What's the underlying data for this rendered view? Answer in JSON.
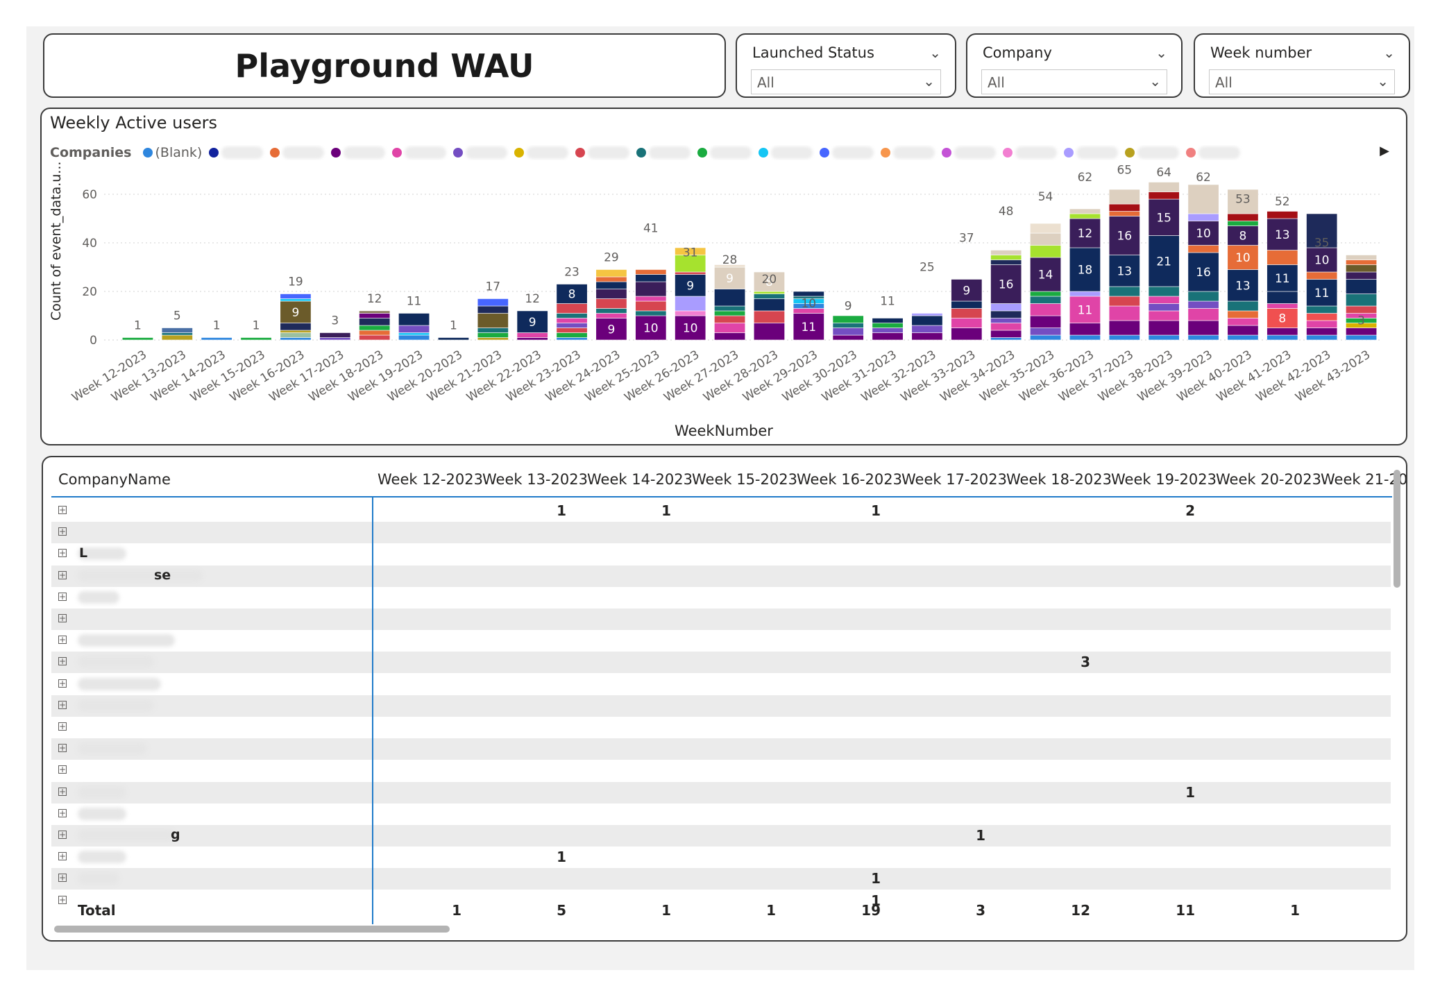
{
  "header": {
    "title": "Playground WAU"
  },
  "slicers": [
    {
      "label": "Launched Status",
      "value": "All"
    },
    {
      "label": "Company",
      "value": "All"
    },
    {
      "label": "Week number",
      "value": "All"
    }
  ],
  "chart": {
    "title": "Weekly Active users",
    "legend_title": "Companies",
    "legend_items": [
      {
        "label": "(Blank)",
        "color": "#2e86de"
      },
      {
        "label": "",
        "color": "#12239e"
      },
      {
        "label": "",
        "color": "#e66c37"
      },
      {
        "label": "",
        "color": "#6b007b"
      },
      {
        "label": "",
        "color": "#e044a7"
      },
      {
        "label": "",
        "color": "#744ec2"
      },
      {
        "label": "",
        "color": "#d9b300"
      },
      {
        "label": "",
        "color": "#d64550"
      },
      {
        "label": "",
        "color": "#197278"
      },
      {
        "label": "",
        "color": "#1aab40"
      },
      {
        "label": "",
        "color": "#15c6f4"
      },
      {
        "label": "",
        "color": "#4766ff"
      },
      {
        "label": "",
        "color": "#f7964d"
      },
      {
        "label": "",
        "color": "#c453d6"
      },
      {
        "label": "",
        "color": "#f27fd1"
      },
      {
        "label": "",
        "color": "#a99cff"
      },
      {
        "label": "",
        "color": "#b8a11f"
      },
      {
        "label": "",
        "color": "#f08080"
      }
    ],
    "legend_arrow": "▶"
  },
  "chart_data": {
    "type": "bar",
    "stacked": true,
    "xlabel": "WeekNumber",
    "ylabel": "Count of event_data.u...",
    "ylim": [
      0,
      70
    ],
    "yticks": [
      0,
      20,
      40,
      60
    ],
    "grid": true,
    "categories": [
      "Week 12-2023",
      "Week 13-2023",
      "Week 14-2023",
      "Week 15-2023",
      "Week 16-2023",
      "Week 17-2023",
      "Week 18-2023",
      "Week 19-2023",
      "Week 20-2023",
      "Week 21-2023",
      "Week 22-2023",
      "Week 23-2023",
      "Week 24-2023",
      "Week 25-2023",
      "Week 26-2023",
      "Week 27-2023",
      "Week 28-2023",
      "Week 29-2023",
      "Week 30-2023",
      "Week 31-2023",
      "Week 32-2023",
      "Week 33-2023",
      "Week 34-2023",
      "Week 35-2023",
      "Week 36-2023",
      "Week 37-2023",
      "Week 38-2023",
      "Week 39-2023",
      "Week 40-2023",
      "Week 41-2023",
      "Week 42-2023",
      "Week 43-2023"
    ],
    "totals": [
      1,
      5,
      1,
      1,
      19,
      3,
      12,
      11,
      1,
      17,
      12,
      23,
      29,
      41,
      31,
      28,
      20,
      10,
      9,
      11,
      25,
      37,
      48,
      54,
      62,
      65,
      64,
      62,
      53,
      52,
      35,
      3
    ],
    "segments": [
      [
        {
          "v": 1,
          "c": "#1aab40"
        }
      ],
      [
        {
          "v": 2,
          "c": "#b8a11f"
        },
        {
          "v": 1,
          "c": "#197278"
        },
        {
          "v": 2,
          "c": "#4a6fa5"
        }
      ],
      [
        {
          "v": 1,
          "c": "#2e86de"
        }
      ],
      [
        {
          "v": 1,
          "c": "#1aab40"
        }
      ],
      [
        {
          "v": 1,
          "c": "#2e86de"
        },
        {
          "v": 2,
          "c": "#9bc0a0"
        },
        {
          "v": 1,
          "c": "#b8a11f"
        },
        {
          "v": 3,
          "c": "#1e2a5a"
        },
        {
          "v": 9,
          "c": "#6b5b2a",
          "label": "9"
        },
        {
          "v": 1,
          "c": "#15c6f4"
        },
        {
          "v": 2,
          "c": "#4766ff"
        }
      ],
      [
        {
          "v": 1,
          "c": "#744ec2"
        },
        {
          "v": 2,
          "c": "#3a1e5a"
        }
      ],
      [
        {
          "v": 2,
          "c": "#d64550"
        },
        {
          "v": 2,
          "c": "#e66c37"
        },
        {
          "v": 2,
          "c": "#1aab40"
        },
        {
          "v": 3,
          "c": "#1e2a5a"
        },
        {
          "v": 2,
          "c": "#6b007b"
        },
        {
          "v": 1,
          "c": "#8a7a5a"
        }
      ],
      [
        {
          "v": 2,
          "c": "#2e86de"
        },
        {
          "v": 1,
          "c": "#15c6f4"
        },
        {
          "v": 3,
          "c": "#744ec2"
        },
        {
          "v": 5,
          "c": "#0f2a5c"
        }
      ],
      [
        {
          "v": 1,
          "c": "#0f2a5c"
        }
      ],
      [
        {
          "v": 1,
          "c": "#b8a11f"
        },
        {
          "v": 2,
          "c": "#1aab40"
        },
        {
          "v": 2,
          "c": "#197278"
        },
        {
          "v": 6,
          "c": "#6b5b2a"
        },
        {
          "v": 3,
          "c": "#1e2a5a"
        },
        {
          "v": 3,
          "c": "#4766ff"
        }
      ],
      [
        {
          "v": 1,
          "c": "#6b007b"
        },
        {
          "v": 2,
          "c": "#e044a7"
        },
        {
          "v": 9,
          "c": "#0f2a5c",
          "label": "9"
        }
      ],
      [
        {
          "v": 1,
          "c": "#2e86de"
        },
        {
          "v": 2,
          "c": "#1aab40"
        },
        {
          "v": 2,
          "c": "#d64550"
        },
        {
          "v": 2,
          "c": "#744ec2"
        },
        {
          "v": 2,
          "c": "#e044a7"
        },
        {
          "v": 2,
          "c": "#197278"
        },
        {
          "v": 4,
          "c": "#d64550"
        },
        {
          "v": 8,
          "c": "#0f2a5c",
          "label": "8"
        }
      ],
      [
        {
          "v": 9,
          "c": "#6b007b",
          "label": "9"
        },
        {
          "v": 2,
          "c": "#e044a7"
        },
        {
          "v": 2,
          "c": "#197278"
        },
        {
          "v": 4,
          "c": "#d64550"
        },
        {
          "v": 4,
          "c": "#3a1e5a"
        },
        {
          "v": 3,
          "c": "#0f2a5c"
        },
        {
          "v": 2,
          "c": "#e66c37"
        },
        {
          "v": 3,
          "c": "#f5c542"
        }
      ],
      [
        {
          "v": 10,
          "c": "#6b007b",
          "label": "10"
        },
        {
          "v": 2,
          "c": "#197278"
        },
        {
          "v": 4,
          "c": "#d64550"
        },
        {
          "v": 2,
          "c": "#e044a7"
        },
        {
          "v": 6,
          "c": "#3a1e5a"
        },
        {
          "v": 3,
          "c": "#0f2a5c"
        },
        {
          "v": 2,
          "c": "#e66c37"
        }
      ],
      [
        {
          "v": 10,
          "c": "#6b007b",
          "label": "10"
        },
        {
          "v": 2,
          "c": "#f27fd1"
        },
        {
          "v": 6,
          "c": "#a99cff"
        },
        {
          "v": 9,
          "c": "#0f2a5c",
          "label": "9"
        },
        {
          "v": 1,
          "c": "#d64550"
        },
        {
          "v": 7,
          "c": "#a6e22e"
        },
        {
          "v": 3,
          "c": "#f5c542"
        }
      ],
      [
        {
          "v": 3,
          "c": "#6b007b"
        },
        {
          "v": 4,
          "c": "#e044a7"
        },
        {
          "v": 3,
          "c": "#d64550"
        },
        {
          "v": 2,
          "c": "#1aab40"
        },
        {
          "v": 2,
          "c": "#197278"
        },
        {
          "v": 7,
          "c": "#0f2a5c"
        },
        {
          "v": 9,
          "c": "#ddd0c0",
          "label": "9"
        },
        {
          "v": 1,
          "c": "#ece0d0"
        }
      ],
      [
        {
          "v": 7,
          "c": "#6b007b"
        },
        {
          "v": 5,
          "c": "#d64550"
        },
        {
          "v": 5,
          "c": "#0f2a5c"
        },
        {
          "v": 2,
          "c": "#197278"
        },
        {
          "v": 1,
          "c": "#a6e22e"
        },
        {
          "v": 8,
          "c": "#ddd0c0",
          "label": "8"
        }
      ],
      [
        {
          "v": 11,
          "c": "#6b007b",
          "label": "11"
        },
        {
          "v": 2,
          "c": "#e044a7"
        },
        {
          "v": 2,
          "c": "#2e86de"
        },
        {
          "v": 2,
          "c": "#15c6f4"
        },
        {
          "v": 1,
          "c": "#197278"
        },
        {
          "v": 2,
          "c": "#0f2a5c"
        }
      ],
      [
        {
          "v": 2,
          "c": "#6b007b"
        },
        {
          "v": 3,
          "c": "#744ec2"
        },
        {
          "v": 2,
          "c": "#197278"
        },
        {
          "v": 3,
          "c": "#1aab40"
        }
      ],
      [
        {
          "v": 3,
          "c": "#6b007b"
        },
        {
          "v": 2,
          "c": "#744ec2"
        },
        {
          "v": 2,
          "c": "#1aab40"
        },
        {
          "v": 2,
          "c": "#0f2a5c"
        }
      ],
      [
        {
          "v": 3,
          "c": "#6b007b"
        },
        {
          "v": 3,
          "c": "#744ec2"
        },
        {
          "v": 4,
          "c": "#0f2a5c"
        },
        {
          "v": 1,
          "c": "#a99cff"
        }
      ],
      [
        {
          "v": 5,
          "c": "#6b007b"
        },
        {
          "v": 4,
          "c": "#e044a7"
        },
        {
          "v": 4,
          "c": "#d64550"
        },
        {
          "v": 3,
          "c": "#0f2a5c"
        },
        {
          "v": 9,
          "c": "#3a1e5a",
          "label": "9"
        }
      ],
      [
        {
          "v": 1,
          "c": "#2e86de"
        },
        {
          "v": 3,
          "c": "#6b007b"
        },
        {
          "v": 3,
          "c": "#e044a7"
        },
        {
          "v": 2,
          "c": "#744ec2"
        },
        {
          "v": 3,
          "c": "#1e2a5a"
        },
        {
          "v": 3,
          "c": "#a99cff"
        },
        {
          "v": 16,
          "c": "#3a1e5a",
          "label": "16"
        },
        {
          "v": 2,
          "c": "#1e2a5a"
        },
        {
          "v": 2,
          "c": "#a6e22e"
        },
        {
          "v": 2,
          "c": "#ddd0c0"
        }
      ],
      [
        {
          "v": 2,
          "c": "#2e86de"
        },
        {
          "v": 3,
          "c": "#744ec2"
        },
        {
          "v": 5,
          "c": "#6b007b"
        },
        {
          "v": 5,
          "c": "#e044a7"
        },
        {
          "v": 3,
          "c": "#197278"
        },
        {
          "v": 2,
          "c": "#1aab40"
        },
        {
          "v": 14,
          "c": "#3a1e5a",
          "label": "14"
        },
        {
          "v": 5,
          "c": "#a6e22e"
        },
        {
          "v": 5,
          "c": "#ddd0c0"
        },
        {
          "v": 4,
          "c": "#ece0d0"
        }
      ],
      [
        {
          "v": 2,
          "c": "#2e86de"
        },
        {
          "v": 5,
          "c": "#6b007b"
        },
        {
          "v": 11,
          "c": "#e044a7",
          "label": "11"
        },
        {
          "v": 2,
          "c": "#a99cff"
        },
        {
          "v": 18,
          "c": "#0f2a5c",
          "label": "18"
        },
        {
          "v": 12,
          "c": "#3a1e5a",
          "label": "12"
        },
        {
          "v": 2,
          "c": "#a6e22e"
        },
        {
          "v": 2,
          "c": "#ddd0c0"
        }
      ],
      [
        {
          "v": 2,
          "c": "#2e86de"
        },
        {
          "v": 6,
          "c": "#6b007b"
        },
        {
          "v": 6,
          "c": "#e044a7"
        },
        {
          "v": 4,
          "c": "#d64550"
        },
        {
          "v": 4,
          "c": "#197278"
        },
        {
          "v": 13,
          "c": "#0f2a5c",
          "label": "13"
        },
        {
          "v": 16,
          "c": "#3a1e5a",
          "label": "16"
        },
        {
          "v": 2,
          "c": "#e66c37"
        },
        {
          "v": 3,
          "c": "#a50f15"
        },
        {
          "v": 6,
          "c": "#ddd0c0"
        }
      ],
      [
        {
          "v": 2,
          "c": "#2e86de"
        },
        {
          "v": 6,
          "c": "#6b007b"
        },
        {
          "v": 4,
          "c": "#e044a7"
        },
        {
          "v": 3,
          "c": "#744ec2"
        },
        {
          "v": 3,
          "c": "#e044a7"
        },
        {
          "v": 4,
          "c": "#197278"
        },
        {
          "v": 21,
          "c": "#0f2a5c",
          "label": "21"
        },
        {
          "v": 15,
          "c": "#3a1e5a",
          "label": "15"
        },
        {
          "v": 3,
          "c": "#a50f15"
        },
        {
          "v": 4,
          "c": "#ddd0c0"
        }
      ],
      [
        {
          "v": 2,
          "c": "#2e86de"
        },
        {
          "v": 6,
          "c": "#6b007b"
        },
        {
          "v": 5,
          "c": "#e044a7"
        },
        {
          "v": 3,
          "c": "#744ec2"
        },
        {
          "v": 4,
          "c": "#197278"
        },
        {
          "v": 16,
          "c": "#0f2a5c",
          "label": "16"
        },
        {
          "v": 3,
          "c": "#e66c37"
        },
        {
          "v": 10,
          "c": "#3a1e5a",
          "label": "10"
        },
        {
          "v": 3,
          "c": "#a99cff"
        },
        {
          "v": 12,
          "c": "#ddd0c0"
        }
      ],
      [
        {
          "v": 2,
          "c": "#2e86de"
        },
        {
          "v": 4,
          "c": "#6b007b"
        },
        {
          "v": 3,
          "c": "#e044a7"
        },
        {
          "v": 3,
          "c": "#e66c37"
        },
        {
          "v": 4,
          "c": "#197278"
        },
        {
          "v": 13,
          "c": "#0f2a5c",
          "label": "13"
        },
        {
          "v": 10,
          "c": "#e66c37",
          "label": "10"
        },
        {
          "v": 8,
          "c": "#3a1e5a",
          "label": "8"
        },
        {
          "v": 2,
          "c": "#1aab40"
        },
        {
          "v": 3,
          "c": "#a50f15"
        },
        {
          "v": 10,
          "c": "#ddd0c0"
        }
      ],
      [
        {
          "v": 2,
          "c": "#2e86de"
        },
        {
          "v": 3,
          "c": "#6b007b"
        },
        {
          "v": 8,
          "c": "#f05050",
          "label": "8"
        },
        {
          "v": 2,
          "c": "#e044a7"
        },
        {
          "v": 5,
          "c": "#0f2a5c"
        },
        {
          "v": 11,
          "c": "#0f2a5c",
          "label": "11"
        },
        {
          "v": 6,
          "c": "#e66c37"
        },
        {
          "v": 13,
          "c": "#3a1e5a",
          "label": "13"
        },
        {
          "v": 3,
          "c": "#a50f15"
        }
      ],
      [
        {
          "v": 2,
          "c": "#2e86de"
        },
        {
          "v": 3,
          "c": "#6b007b"
        },
        {
          "v": 3,
          "c": "#e044a7"
        },
        {
          "v": 3,
          "c": "#f05050"
        },
        {
          "v": 3,
          "c": "#197278"
        },
        {
          "v": 11,
          "c": "#0f2a5c",
          "label": "11"
        },
        {
          "v": 3,
          "c": "#e66c37"
        },
        {
          "v": 10,
          "c": "#3a1e5a",
          "label": "10"
        },
        {
          "v": 14,
          "c": "#1e2a5a"
        }
      ],
      [
        {
          "v": 2,
          "c": "#2e86de"
        },
        {
          "v": 3,
          "c": "#6b007b"
        },
        {
          "v": 2,
          "c": "#d9b300"
        },
        {
          "v": 2,
          "c": "#1aab40"
        },
        {
          "v": 2,
          "c": "#e044a7"
        },
        {
          "v": 3,
          "c": "#d64550"
        },
        {
          "v": 5,
          "c": "#197278"
        },
        {
          "v": 6,
          "c": "#0f2a5c"
        },
        {
          "v": 3,
          "c": "#3a1e5a"
        },
        {
          "v": 3,
          "c": "#6b5b2a"
        },
        {
          "v": 2,
          "c": "#e66c37"
        },
        {
          "v": 2,
          "c": "#ddd0c0"
        }
      ],
      [
        {
          "v": 1,
          "c": "#2e86de"
        },
        {
          "v": 2,
          "c": "#0f2a5c"
        }
      ]
    ]
  },
  "table": {
    "row_header": "CompanyName",
    "columns": [
      "Week 12-2023",
      "Week 13-2023",
      "Week 14-2023",
      "Week 15-2023",
      "Week 16-2023",
      "Week 17-2023",
      "Week 18-2023",
      "Week 19-2023",
      "Week 20-2023",
      "Week 21-20"
    ],
    "rows": [
      {
        "name": "",
        "values": {
          "1": "1",
          "2": "1",
          "4": "1",
          "7": "2"
        }
      },
      {
        "name": "",
        "values": {}
      },
      {
        "name": "L",
        "values": {}
      },
      {
        "name": "se",
        "values": {}
      },
      {
        "name": "",
        "values": {}
      },
      {
        "name": "",
        "values": {}
      },
      {
        "name": "",
        "values": {}
      },
      {
        "name": "",
        "values": {
          "6": "3"
        }
      },
      {
        "name": "",
        "values": {}
      },
      {
        "name": "",
        "values": {}
      },
      {
        "name": "",
        "values": {}
      },
      {
        "name": "",
        "values": {}
      },
      {
        "name": "",
        "values": {}
      },
      {
        "name": "",
        "values": {
          "7": "1"
        }
      },
      {
        "name": "",
        "values": {}
      },
      {
        "name": "g",
        "values": {
          "5": "1"
        }
      },
      {
        "name": "",
        "values": {
          "1": "1"
        }
      },
      {
        "name": "",
        "values": {
          "4": "1"
        }
      },
      {
        "name": "",
        "values": {
          "4": "1"
        }
      }
    ],
    "total_label": "Total",
    "totals": [
      "1",
      "5",
      "1",
      "1",
      "19",
      "3",
      "12",
      "11",
      "1",
      ""
    ]
  }
}
